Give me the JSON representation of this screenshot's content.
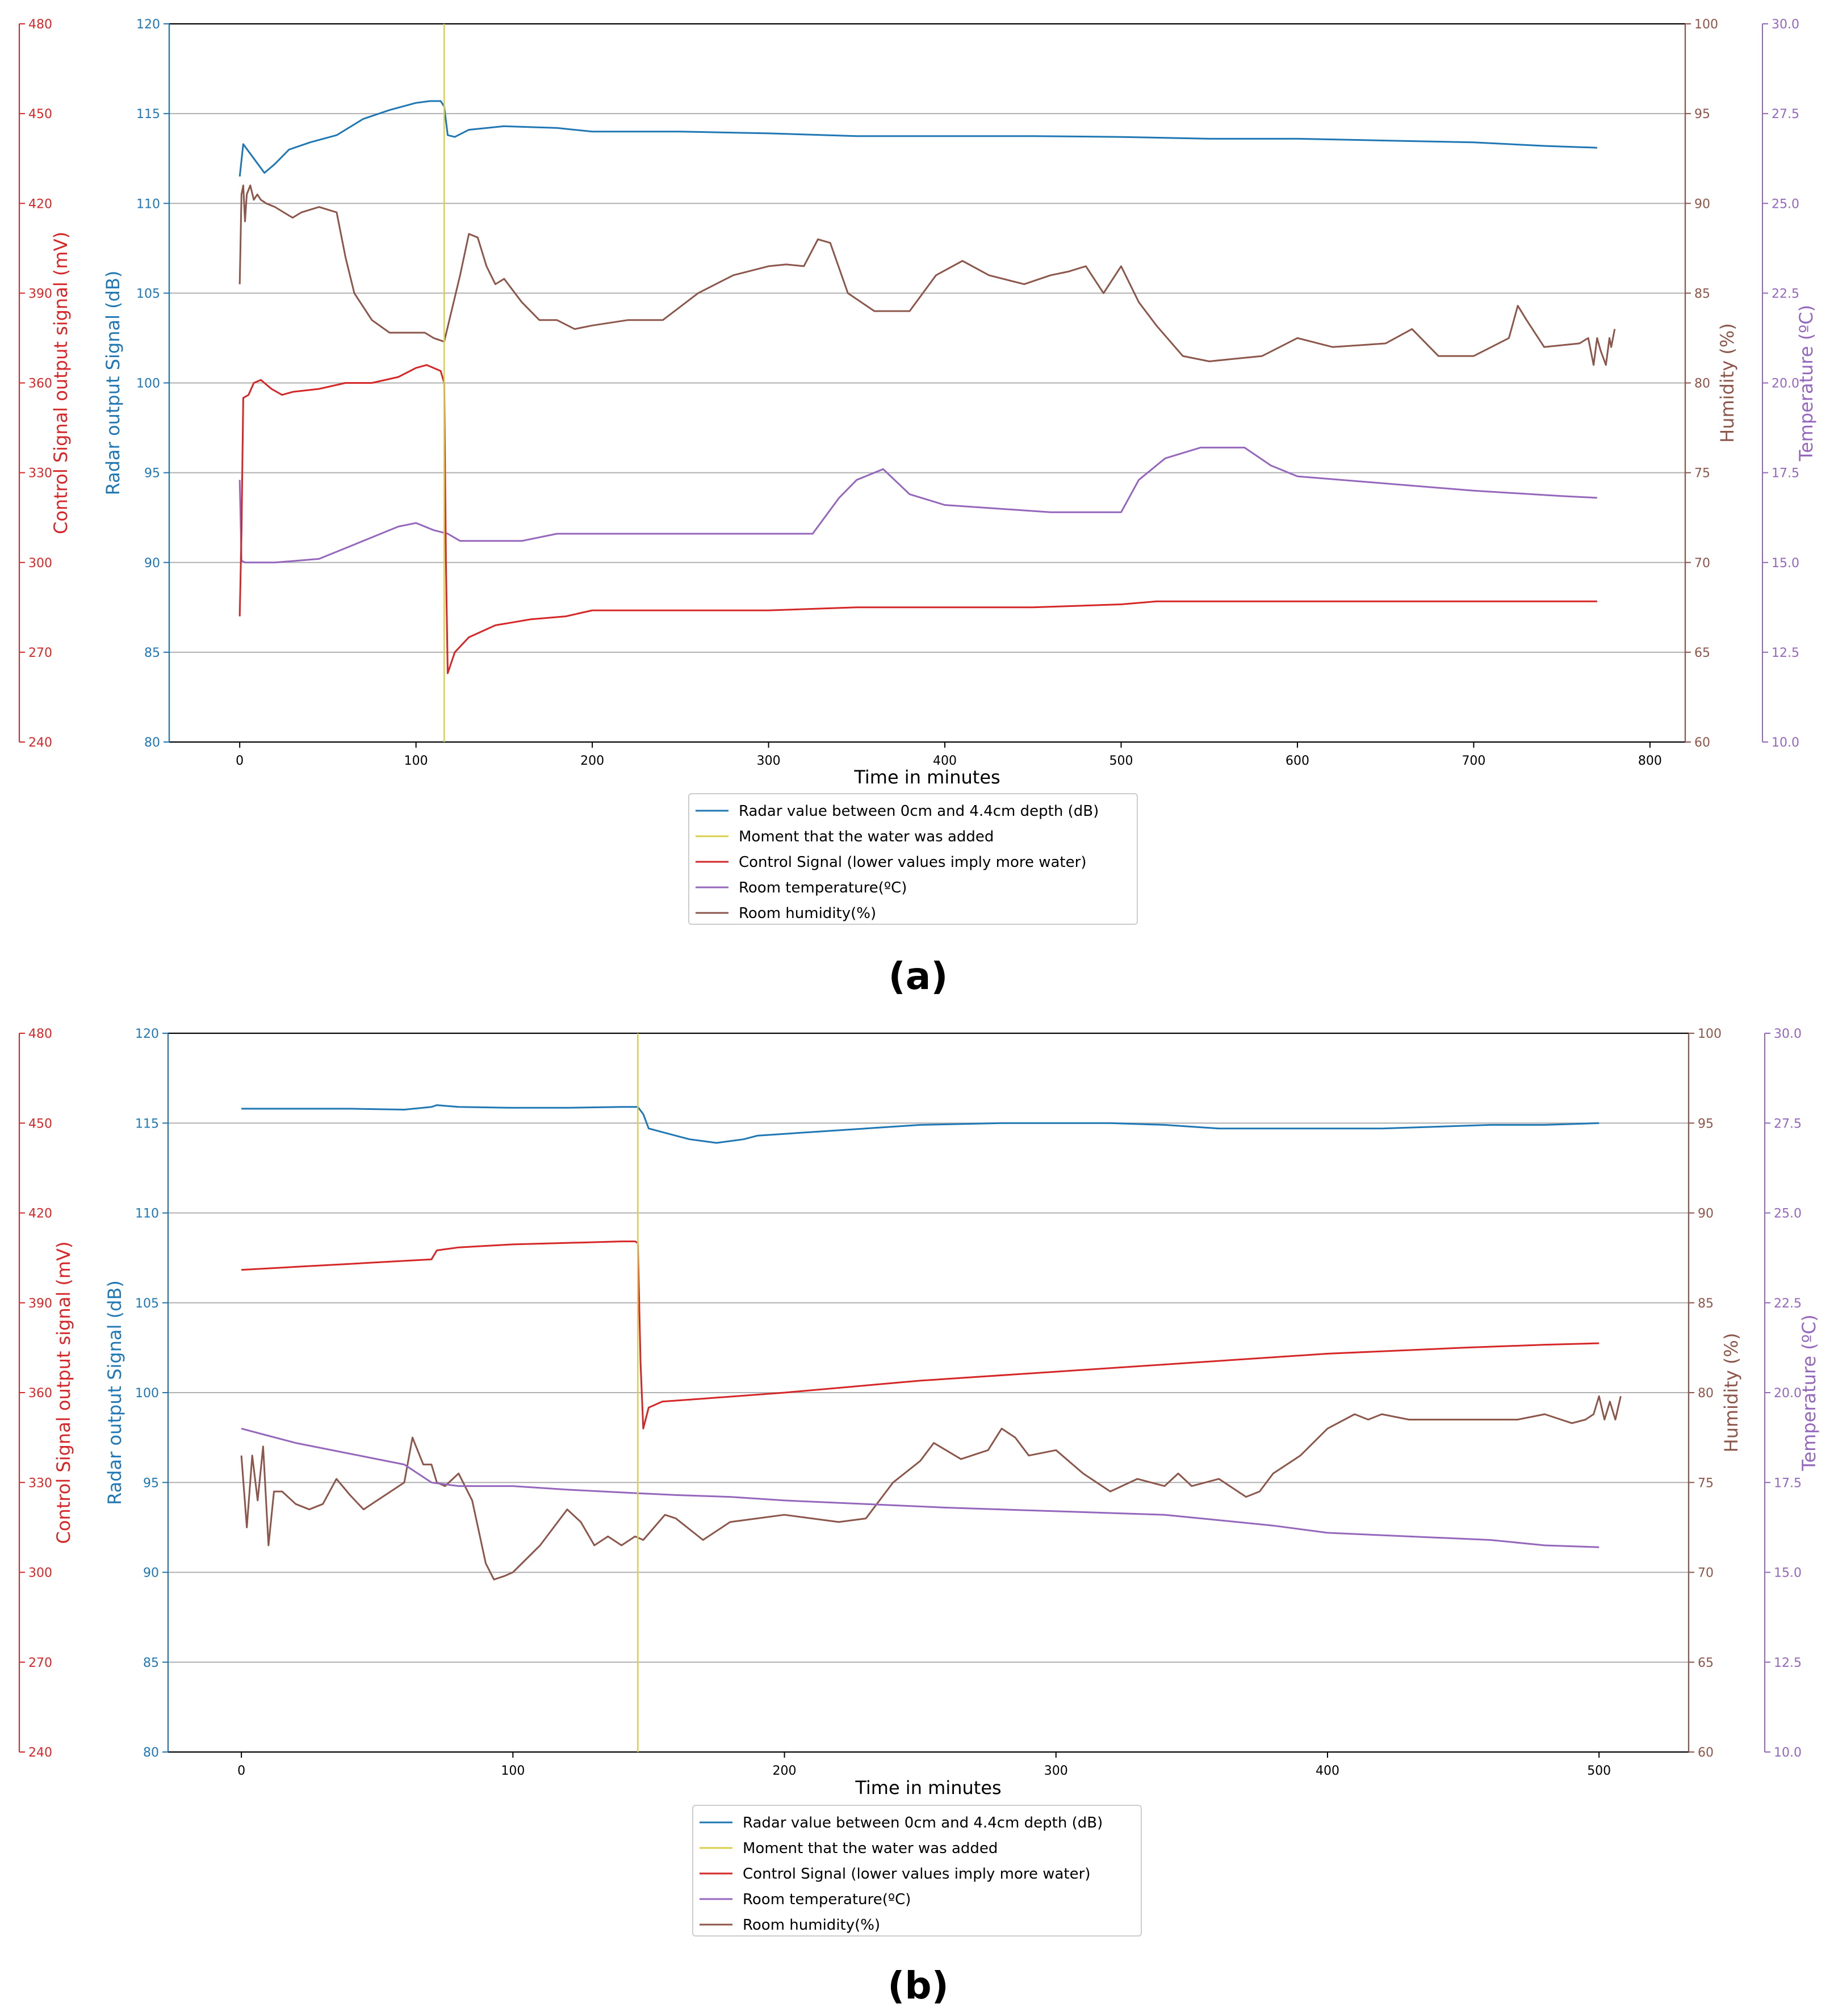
{
  "colors": {
    "radar": "#1f77b4",
    "water": "#d8d04a",
    "control": "#d62728",
    "temperature": "#9467bd",
    "humidity": "#8c564b",
    "grid": "#b0b0b0",
    "axis": "#000000"
  },
  "chart_data": [
    {
      "type": "line",
      "panel_label": "(a)",
      "xlabel": "Time in minutes",
      "xlim": [
        -40,
        820
      ],
      "xticks": [
        0,
        100,
        200,
        300,
        400,
        500,
        600,
        700,
        800
      ],
      "water_added_x": 116,
      "axes": {
        "radar": {
          "label": "Radar output Signal (dB)",
          "range": [
            80,
            120
          ],
          "ticks": [
            80,
            85,
            90,
            95,
            100,
            105,
            110,
            115,
            120
          ],
          "side": "left-inner"
        },
        "control": {
          "label": "Control Signal output signal (mV)",
          "range": [
            240,
            480
          ],
          "ticks": [
            240,
            270,
            300,
            330,
            360,
            390,
            420,
            450,
            480
          ],
          "side": "left-outer"
        },
        "humidity": {
          "label": "Humidity (%)",
          "range": [
            60,
            100
          ],
          "ticks": [
            60,
            65,
            70,
            75,
            80,
            85,
            90,
            95,
            100
          ],
          "side": "right-inner"
        },
        "temperature": {
          "label": "Temperature (ºC)",
          "range": [
            10.0,
            30.0
          ],
          "ticks": [
            "10.0",
            "12.5",
            "15.0",
            "17.5",
            "20.0",
            "22.5",
            "25.0",
            "27.5",
            "30.0"
          ],
          "side": "right-outer"
        }
      },
      "legend": [
        "Radar value between 0cm and 4.4cm depth (dB)",
        "Moment that the water was added",
        "Control Signal (lower values imply more water)",
        "Room temperature(ºC)",
        "Room humidity(%)"
      ],
      "series": [
        {
          "name": "Radar value between 0cm and 4.4cm depth (dB)",
          "axis": "radar",
          "x": [
            0,
            2,
            8,
            14,
            20,
            28,
            40,
            55,
            70,
            85,
            100,
            108,
            114,
            116,
            118,
            122,
            130,
            150,
            180,
            200,
            250,
            300,
            350,
            400,
            450,
            500,
            550,
            600,
            650,
            700,
            740,
            770
          ],
          "y": [
            111.5,
            113.3,
            112.5,
            111.7,
            112.2,
            113,
            113.4,
            113.8,
            114.7,
            115.2,
            115.6,
            115.7,
            115.7,
            115.4,
            113.8,
            113.7,
            114.1,
            114.3,
            114.2,
            114.0,
            114.0,
            113.9,
            113.75,
            113.75,
            113.75,
            113.7,
            113.6,
            113.6,
            113.5,
            113.4,
            113.2,
            113.1
          ]
        },
        {
          "name": "Control Signal (lower values imply more water)",
          "axis": "control",
          "x": [
            0,
            1,
            2,
            5,
            8,
            12,
            18,
            24,
            30,
            45,
            60,
            75,
            90,
            100,
            106,
            110,
            114,
            116,
            117,
            118,
            122,
            130,
            145,
            165,
            185,
            200,
            250,
            300,
            350,
            400,
            450,
            500,
            520,
            550,
            600,
            650,
            700,
            750,
            770
          ],
          "y": [
            282,
            310,
            355,
            356,
            360,
            361,
            358,
            356,
            357,
            358,
            360,
            360,
            362,
            365,
            366,
            365,
            364,
            360,
            300,
            263,
            270,
            275,
            279,
            281,
            282,
            284,
            284,
            284,
            285,
            285,
            285,
            286,
            287,
            287,
            287,
            287,
            287,
            287,
            287
          ]
        },
        {
          "name": "Room temperature(ºC)",
          "axis": "temperature",
          "x": [
            0,
            1,
            3,
            20,
            45,
            60,
            75,
            90,
            100,
            110,
            118,
            125,
            140,
            160,
            180,
            200,
            250,
            300,
            325,
            340,
            350,
            365,
            380,
            400,
            430,
            460,
            490,
            500,
            510,
            525,
            545,
            570,
            585,
            600,
            650,
            700,
            750,
            770
          ],
          "y": [
            17.3,
            15.05,
            15.0,
            15.0,
            15.1,
            15.4,
            15.7,
            16.0,
            16.1,
            15.9,
            15.8,
            15.6,
            15.6,
            15.6,
            15.8,
            15.8,
            15.8,
            15.8,
            15.8,
            16.8,
            17.3,
            17.6,
            16.9,
            16.6,
            16.5,
            16.4,
            16.4,
            16.4,
            17.3,
            17.9,
            18.2,
            18.2,
            17.7,
            17.4,
            17.2,
            17.0,
            16.85,
            16.8
          ]
        },
        {
          "name": "Room humidity(%)",
          "axis": "humidity",
          "x": [
            0,
            1,
            2,
            3,
            4,
            6,
            8,
            10,
            12,
            15,
            20,
            25,
            30,
            35,
            45,
            55,
            60,
            65,
            75,
            85,
            95,
            100,
            105,
            110,
            116,
            125,
            130,
            135,
            140,
            145,
            150,
            160,
            170,
            180,
            190,
            200,
            220,
            240,
            260,
            280,
            300,
            310,
            320,
            328,
            335,
            345,
            360,
            380,
            395,
            410,
            425,
            445,
            460,
            470,
            480,
            490,
            500,
            510,
            520,
            535,
            550,
            580,
            600,
            620,
            650,
            665,
            680,
            700,
            710,
            720,
            725,
            730,
            740,
            760,
            765,
            768,
            770,
            772,
            775,
            777,
            778,
            780
          ],
          "y": [
            85.5,
            90.5,
            91,
            89,
            90.5,
            91,
            90.2,
            90.5,
            90.2,
            90,
            89.8,
            89.5,
            89.2,
            89.5,
            89.8,
            89.5,
            87,
            85,
            83.5,
            82.8,
            82.8,
            82.8,
            82.8,
            82.5,
            82.3,
            86,
            88.3,
            88.1,
            86.5,
            85.5,
            85.8,
            84.5,
            83.5,
            83.5,
            83,
            83.2,
            83.5,
            83.5,
            85,
            86,
            86.5,
            86.6,
            86.5,
            88,
            87.8,
            85,
            84,
            84,
            86,
            86.8,
            86,
            85.5,
            86,
            86.2,
            86.5,
            85,
            86.5,
            84.5,
            83.2,
            81.5,
            81.2,
            81.5,
            82.5,
            82,
            82.2,
            83,
            81.5,
            81.5,
            82,
            82.5,
            84.3,
            83.5,
            82,
            82.2,
            82.5,
            81,
            82.5,
            81.8,
            81,
            82.5,
            82,
            83
          ]
        }
      ]
    },
    {
      "type": "line",
      "panel_label": "(b)",
      "xlabel": "Time in minutes",
      "xlim": [
        -27,
        533
      ],
      "xticks": [
        0,
        100,
        200,
        300,
        400,
        500
      ],
      "water_added_x": 146,
      "axes": {
        "radar": {
          "label": "Radar output Signal (dB)",
          "range": [
            80,
            120
          ],
          "ticks": [
            80,
            85,
            90,
            95,
            100,
            105,
            110,
            115,
            120
          ],
          "side": "left-inner"
        },
        "control": {
          "label": "Control Signal output signal (mV)",
          "range": [
            240,
            480
          ],
          "ticks": [
            240,
            270,
            300,
            330,
            360,
            390,
            420,
            450,
            480
          ],
          "side": "left-outer"
        },
        "humidity": {
          "label": "Humidity (%)",
          "range": [
            60,
            100
          ],
          "ticks": [
            60,
            65,
            70,
            75,
            80,
            85,
            90,
            95,
            100
          ],
          "side": "right-inner"
        },
        "temperature": {
          "label": "Temperature (ºC)",
          "range": [
            10.0,
            30.0
          ],
          "ticks": [
            "10.0",
            "12.5",
            "15.0",
            "17.5",
            "20.0",
            "22.5",
            "25.0",
            "27.5",
            "30.0"
          ],
          "side": "right-outer"
        }
      },
      "legend": [
        "Radar value between 0cm and 4.4cm depth (dB)",
        "Moment that the water was added",
        "Control Signal (lower values imply more water)",
        "Room temperature(ºC)",
        "Room humidity(%)"
      ],
      "series": [
        {
          "name": "Radar value between 0cm and 4.4cm depth (dB)",
          "axis": "radar",
          "x": [
            0,
            20,
            40,
            60,
            70,
            72,
            80,
            100,
            120,
            140,
            146,
            148,
            150,
            155,
            160,
            165,
            170,
            175,
            180,
            185,
            190,
            200,
            220,
            250,
            280,
            300,
            320,
            340,
            360,
            380,
            400,
            420,
            440,
            460,
            480,
            500
          ],
          "y": [
            115.8,
            115.8,
            115.8,
            115.75,
            115.9,
            116.0,
            115.9,
            115.85,
            115.85,
            115.9,
            115.9,
            115.5,
            114.7,
            114.5,
            114.3,
            114.1,
            114.0,
            113.9,
            114.0,
            114.1,
            114.3,
            114.4,
            114.6,
            114.9,
            115.0,
            115.0,
            115.0,
            114.9,
            114.7,
            114.7,
            114.7,
            114.7,
            114.8,
            114.9,
            114.9,
            115.0
          ]
        },
        {
          "name": "Control Signal (lower values imply more water)",
          "axis": "control",
          "x": [
            0,
            10,
            20,
            40,
            60,
            70,
            72,
            80,
            90,
            100,
            120,
            140,
            145,
            146,
            147,
            148,
            150,
            155,
            170,
            200,
            250,
            300,
            350,
            400,
            450,
            480,
            500
          ],
          "y": [
            401,
            401.5,
            402,
            403,
            404,
            404.5,
            407.5,
            408.5,
            409,
            409.5,
            410,
            410.5,
            410.5,
            410,
            370,
            348,
            355,
            357,
            358,
            360,
            364,
            367,
            370,
            373,
            375,
            376,
            376.5
          ]
        },
        {
          "name": "Room temperature(ºC)",
          "axis": "temperature",
          "x": [
            0,
            10,
            20,
            40,
            60,
            70,
            80,
            100,
            120,
            146,
            160,
            180,
            200,
            230,
            260,
            300,
            340,
            380,
            400,
            430,
            460,
            480,
            500
          ],
          "y": [
            19.0,
            18.8,
            18.6,
            18.3,
            18.0,
            17.5,
            17.4,
            17.4,
            17.3,
            17.2,
            17.15,
            17.1,
            17.0,
            16.9,
            16.8,
            16.7,
            16.6,
            16.3,
            16.1,
            16.0,
            15.9,
            15.75,
            15.7
          ]
        },
        {
          "name": "Room humidity(%)",
          "axis": "humidity",
          "x": [
            0,
            2,
            4,
            6,
            8,
            10,
            12,
            15,
            20,
            25,
            30,
            35,
            40,
            45,
            50,
            55,
            60,
            63,
            67,
            70,
            72,
            75,
            80,
            85,
            90,
            93,
            97,
            100,
            110,
            120,
            125,
            130,
            135,
            140,
            145,
            148,
            152,
            156,
            160,
            170,
            180,
            200,
            220,
            230,
            240,
            250,
            255,
            265,
            275,
            280,
            285,
            290,
            300,
            310,
            320,
            330,
            340,
            345,
            350,
            360,
            370,
            375,
            380,
            390,
            400,
            410,
            415,
            420,
            430,
            450,
            470,
            480,
            490,
            495,
            498,
            500,
            502,
            504,
            506,
            508
          ],
          "y": [
            76.5,
            72.5,
            76.5,
            74,
            77,
            71.5,
            74.5,
            74.5,
            73.8,
            73.5,
            73.8,
            75.2,
            74.3,
            73.5,
            74,
            74.5,
            75,
            77.5,
            76,
            76,
            75,
            74.8,
            75.5,
            74,
            70.5,
            69.6,
            69.8,
            70,
            71.5,
            73.5,
            72.8,
            71.5,
            72,
            71.5,
            72,
            71.8,
            72.5,
            73.2,
            73,
            71.8,
            72.8,
            73.2,
            72.8,
            73,
            75,
            76.2,
            77.2,
            76.3,
            76.8,
            78,
            77.5,
            76.5,
            76.8,
            75.5,
            74.5,
            75.2,
            74.8,
            75.5,
            74.8,
            75.2,
            74.2,
            74.5,
            75.5,
            76.5,
            78,
            78.8,
            78.5,
            78.8,
            78.5,
            78.5,
            78.5,
            78.8,
            78.3,
            78.5,
            78.8,
            79.8,
            78.5,
            79.5,
            78.5,
            79.8
          ]
        }
      ]
    }
  ]
}
